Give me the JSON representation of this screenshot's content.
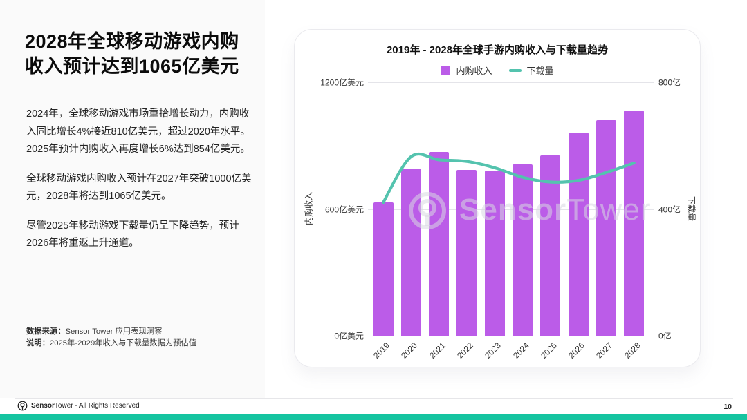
{
  "left_panel": {
    "title_lines": [
      "2028年全球移动游戏内购",
      "收入预计达到1065亿美元"
    ],
    "paragraphs": [
      "2024年，全球移动游戏市场重拾增长动力，内购收入同比增长4%接近810亿美元，超过2020年水平。2025年预计内购收入再度增长6%达到854亿美元。",
      "全球移动游戏内购收入预计在2027年突破1000亿美元，2028年将达到1065亿美元。",
      "尽管2025年移动游戏下载量仍呈下降趋势，预计2026年将重返上升通道。"
    ],
    "notes": [
      {
        "label": "数据来源：",
        "text": "Sensor Tower 应用表现洞察"
      },
      {
        "label": "说明：",
        "text": "2025年-2029年收入与下载量数据为预估值"
      }
    ]
  },
  "chart_data": {
    "type": "bar",
    "title": "2019年 - 2028年全球手游内购收入与下载量趋势",
    "categories": [
      "2019",
      "2020",
      "2021",
      "2022",
      "2023",
      "2024",
      "2025",
      "2026",
      "2027",
      "2028"
    ],
    "series": [
      {
        "name": "内购收入",
        "type": "bar",
        "axis": "left",
        "unit": "亿美元",
        "color": "#bb5ce8",
        "values": [
          630,
          790,
          870,
          785,
          780,
          810,
          854,
          960,
          1020,
          1065
        ]
      },
      {
        "name": "下载量",
        "type": "line",
        "axis": "right",
        "unit": "亿",
        "color": "#54c3ae",
        "values": [
          420,
          565,
          555,
          550,
          530,
          500,
          485,
          490,
          515,
          545
        ]
      }
    ],
    "left_axis": {
      "label": "内购收入",
      "min": 0,
      "max": 1200,
      "ticks": [
        "0亿美元",
        "600亿美元",
        "1200亿美元"
      ]
    },
    "right_axis": {
      "label": "下载量",
      "min": 0,
      "max": 800,
      "ticks": [
        "0亿",
        "400亿",
        "800亿"
      ]
    },
    "grid": true,
    "legend_position": "top",
    "x_label_rotate": 45,
    "watermark": {
      "bold": "Sensor",
      "rest": "Tower"
    }
  },
  "footer": {
    "brand_bold": "Sensor",
    "brand_rest": "Tower",
    "rights": " - All Rights Reserved",
    "page_number": "10",
    "accent_color": "#15c4a0"
  }
}
